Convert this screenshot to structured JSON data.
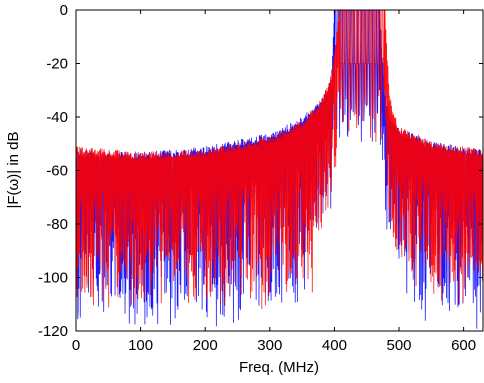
{
  "chart_data": {
    "type": "line",
    "title": "",
    "xlabel": "Freq. (MHz)",
    "ylabel": "|F(ω)| in dB",
    "xlim": [
      0,
      630
    ],
    "ylim": [
      -120,
      0
    ],
    "xticks": [
      0,
      100,
      200,
      300,
      400,
      500,
      600
    ],
    "yticks": [
      0,
      -20,
      -40,
      -60,
      -80,
      -100,
      -120
    ],
    "grid": false,
    "legend": "none",
    "colors": {
      "blue": "#0000ff",
      "red": "#ff0000",
      "axis": "#000000"
    },
    "series": [
      {
        "color": "blue",
        "passband_edges_mhz": [
          400,
          470
        ],
        "passband_level_db": 0,
        "shoulder_level_db": -20,
        "envelope_x": [
          0,
          100,
          200,
          300,
          350,
          380,
          395,
          400,
          470,
          478,
          485,
          500,
          550,
          600,
          630
        ],
        "envelope_db": [
          -52,
          -53,
          -51,
          -46,
          -40,
          -33,
          -25,
          0,
          0,
          -30,
          -38,
          -44,
          -49,
          -51,
          -52
        ],
        "floor_db": -100,
        "notch_x": [
          445,
          470
        ],
        "notch_db": [
          -120,
          -120
        ]
      },
      {
        "color": "red",
        "passband_edges_mhz": [
          408,
          478
        ],
        "passband_level_db": 0,
        "shoulder_level_db": -20,
        "envelope_x": [
          0,
          100,
          200,
          300,
          350,
          380,
          395,
          408,
          478,
          485,
          492,
          500,
          550,
          600,
          630
        ],
        "envelope_db": [
          -51,
          -53,
          -52,
          -47,
          -41,
          -33,
          -24,
          0,
          0,
          -30,
          -38,
          -43,
          -49,
          -51,
          -52
        ],
        "floor_db": -90,
        "notch_x": [
          440,
          465
        ],
        "notch_db": [
          -120,
          -120
        ]
      }
    ]
  }
}
